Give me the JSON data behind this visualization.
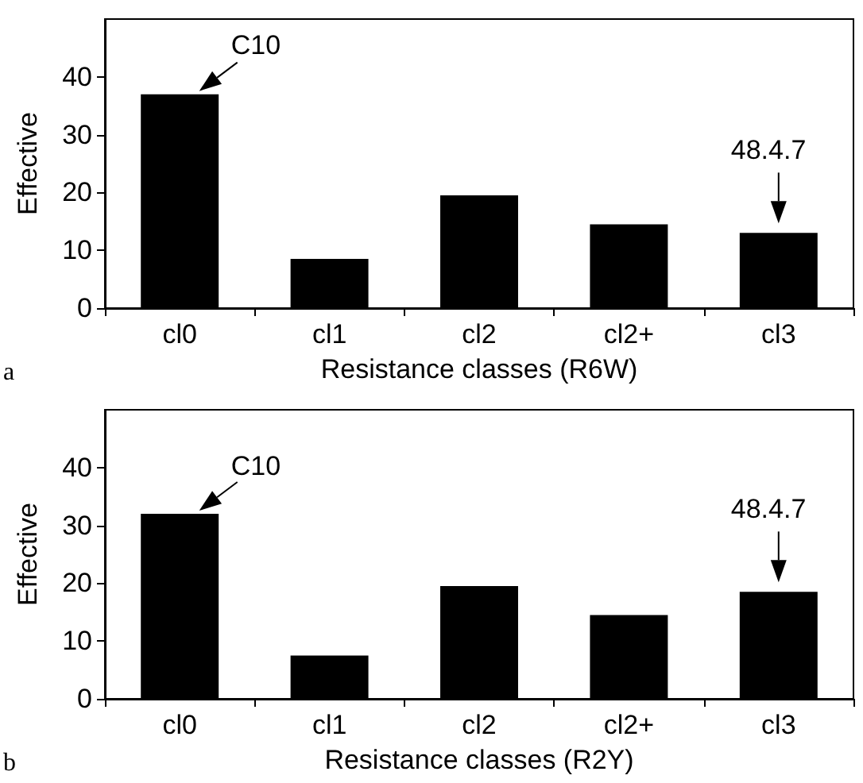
{
  "chart_data": [
    {
      "type": "bar",
      "xlabel": "Resistance classes (R6W)",
      "ylabel": "Effective",
      "categories": [
        "cl0",
        "cl1",
        "cl2",
        "cl2+",
        "cl3"
      ],
      "values": [
        37,
        8.5,
        19.5,
        14.5,
        13
      ],
      "color": "#000000",
      "ylim": [
        0,
        50
      ],
      "yticks": [
        0,
        10,
        20,
        30,
        40
      ],
      "grid": false,
      "annotations": [
        {
          "text": "C10",
          "x": "cl0",
          "y": 37
        },
        {
          "text": "48.4.7",
          "x": "cl3",
          "y": 13
        },
        "a"
      ]
    },
    {
      "type": "bar",
      "xlabel": "Resistance classes (R2Y)",
      "ylabel": "Effective",
      "categories": [
        "cl0",
        "cl1",
        "cl2",
        "cl2+",
        "cl3"
      ],
      "values": [
        32,
        7.5,
        19.5,
        14.5,
        18.5
      ],
      "color": "#000000",
      "ylim": [
        0,
        50
      ],
      "yticks": [
        0,
        10,
        20,
        30,
        40
      ],
      "grid": false,
      "annotations": [
        {
          "text": "C10",
          "x": "cl0",
          "y": 32
        },
        {
          "text": "48.4.7",
          "x": "cl3",
          "y": 18.5
        },
        "b"
      ]
    }
  ]
}
